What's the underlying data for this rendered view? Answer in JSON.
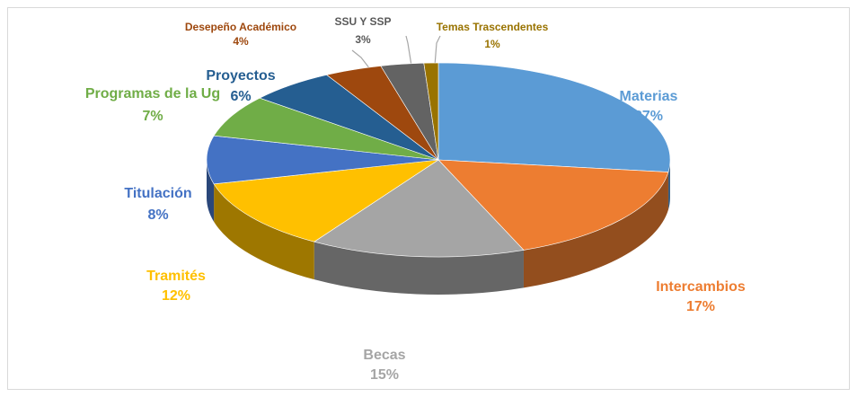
{
  "chart_data": {
    "type": "pie",
    "categories": [
      "Materias",
      "Intercambios",
      "Becas",
      "Tramités",
      "Titulación",
      "Programas de la Ug",
      "Proyectos",
      "Desepeño Académico",
      "SSU Y SSP",
      "Temas Trascendentes"
    ],
    "values": [
      27,
      17,
      15,
      12,
      8,
      7,
      6,
      4,
      3,
      1
    ],
    "value_labels": [
      "27%",
      "17%",
      "15%",
      "12%",
      "8%",
      "7%",
      "6%",
      "4%",
      "3%",
      "1%"
    ],
    "colors": [
      "#5b9bd5",
      "#ed7d31",
      "#a5a5a5",
      "#ffc000",
      "#4472c4",
      "#70ad47",
      "#255e91",
      "#9e480e",
      "#636363",
      "#997300"
    ]
  }
}
